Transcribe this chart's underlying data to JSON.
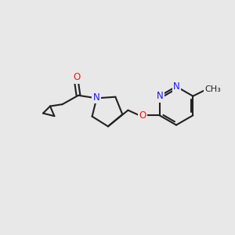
{
  "bg_color": "#e8e8e8",
  "bond_color": "#222222",
  "bond_width": 1.5,
  "atom_colors": {
    "N": "#1a1aee",
    "O": "#ee1a1a",
    "C": "#222222"
  },
  "font_size": 8.5,
  "fig_size": [
    3.0,
    3.0
  ],
  "dpi": 100,
  "xlim": [
    0,
    10
  ],
  "ylim": [
    0,
    10
  ]
}
